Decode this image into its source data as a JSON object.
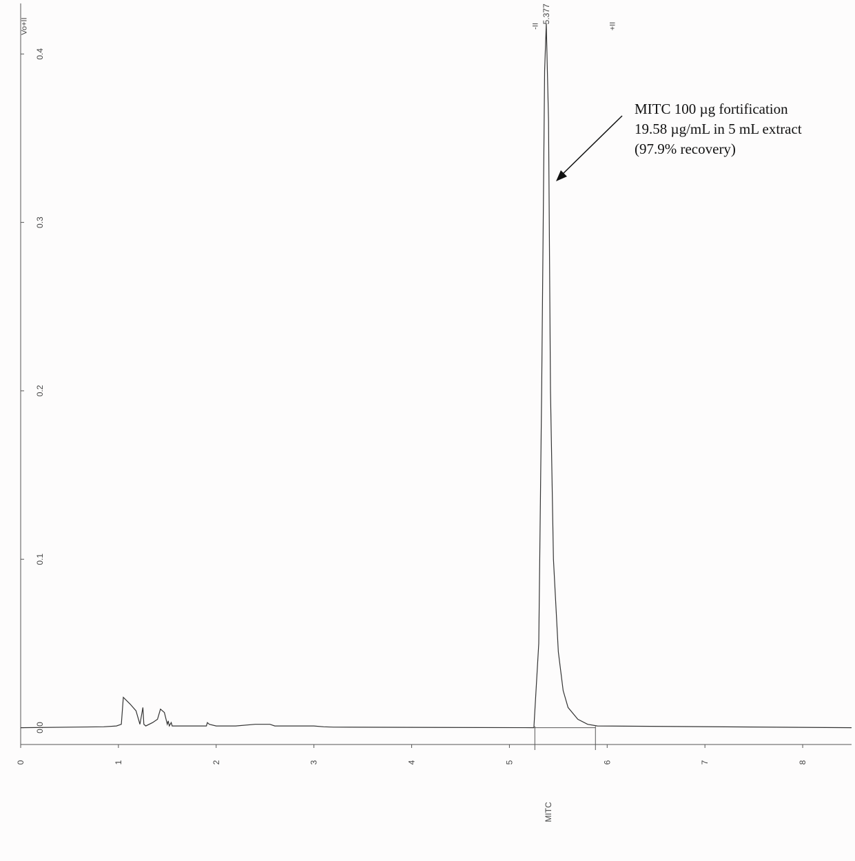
{
  "chart_data": {
    "type": "line",
    "title": "",
    "xlabel": "MITC",
    "ylabel": "",
    "xlim": [
      0,
      8.5
    ],
    "ylim": [
      -0.01,
      0.43
    ],
    "x_ticks": [
      0,
      1,
      2,
      3,
      4,
      5,
      6,
      7,
      8
    ],
    "y_ticks": [
      0.0,
      0.1,
      0.2,
      0.3,
      0.4
    ],
    "y_tick_labels": [
      "0.0",
      "0.1",
      "0.2",
      "0.3",
      "0.4"
    ],
    "grid": false,
    "series": [
      {
        "x": [
          0,
          0.85,
          0.98,
          1.03,
          1.05,
          1.12,
          1.18,
          1.22,
          1.25,
          1.26,
          1.28,
          1.35,
          1.4,
          1.43,
          1.47,
          1.5,
          1.51,
          1.52,
          1.54,
          1.55,
          1.9,
          1.91,
          1.93,
          2.0,
          2.2,
          2.4,
          2.55,
          2.6,
          3.0,
          3.1,
          3.2,
          5.25,
          5.3,
          5.33,
          5.36,
          5.377,
          5.4,
          5.42,
          5.45,
          5.5,
          5.55,
          5.6,
          5.7,
          5.8,
          5.9,
          8.5
        ],
        "y": [
          0,
          0.0005,
          0.001,
          0.002,
          0.018,
          0.014,
          0.01,
          0.002,
          0.012,
          0.002,
          0.001,
          0.003,
          0.005,
          0.011,
          0.009,
          0.002,
          0.004,
          0.001,
          0.003,
          0.001,
          0.001,
          0.003,
          0.002,
          0.001,
          0.001,
          0.002,
          0.002,
          0.001,
          0.001,
          0.0005,
          0.0003,
          0.0,
          0.05,
          0.2,
          0.39,
          0.418,
          0.36,
          0.2,
          0.1,
          0.045,
          0.022,
          0.012,
          0.005,
          0.002,
          0.001,
          0.0
        ]
      }
    ],
    "peak_label": "5.377",
    "integration_baseline": {
      "start": 5.26,
      "end": 5.88
    },
    "markers": [
      {
        "label": "Vo+II",
        "x": 0.03
      },
      {
        "label": "-II",
        "x": 5.26
      },
      {
        "label": "+II",
        "x": 6.05
      }
    ],
    "annotation": {
      "lines": [
        "MITC 100 µg fortification",
        "19.58 µg/mL in 5 mL extract",
        "(97.9% recovery)"
      ]
    }
  }
}
